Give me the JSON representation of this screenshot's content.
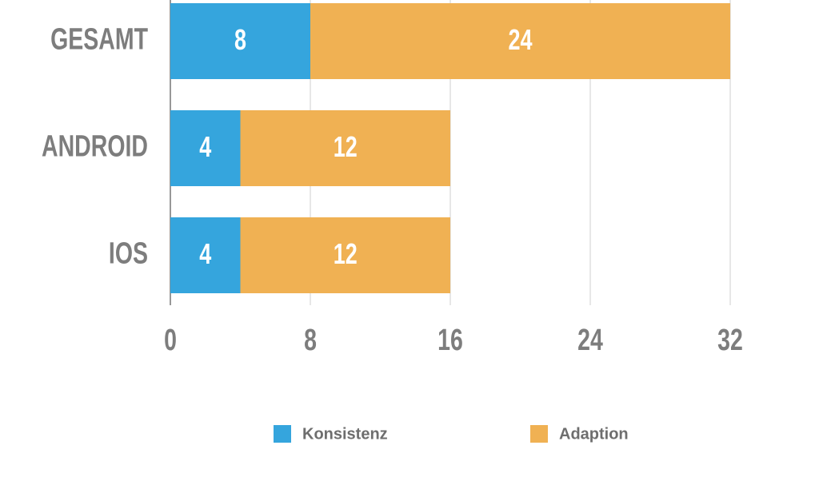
{
  "chart_data": {
    "type": "stacked-bar-horizontal",
    "categories": [
      "GESAMT",
      "ANDROID",
      "IOS"
    ],
    "series": [
      {
        "name": "Konsistenz",
        "color": "#35a5dd",
        "values": [
          8,
          4,
          4
        ]
      },
      {
        "name": "Adaption",
        "color": "#f0b153",
        "values": [
          24,
          12,
          12
        ]
      }
    ],
    "xlim": [
      0,
      32
    ],
    "xticks": [
      0,
      8,
      16,
      24,
      32
    ],
    "grid": true
  }
}
